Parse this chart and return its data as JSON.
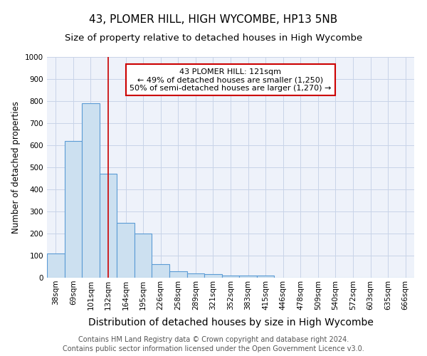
{
  "title": "43, PLOMER HILL, HIGH WYCOMBE, HP13 5NB",
  "subtitle": "Size of property relative to detached houses in High Wycombe",
  "xlabel": "Distribution of detached houses by size in High Wycombe",
  "ylabel": "Number of detached properties",
  "footer_line1": "Contains HM Land Registry data © Crown copyright and database right 2024.",
  "footer_line2": "Contains public sector information licensed under the Open Government Licence v3.0.",
  "categories": [
    "38sqm",
    "69sqm",
    "101sqm",
    "132sqm",
    "164sqm",
    "195sqm",
    "226sqm",
    "258sqm",
    "289sqm",
    "321sqm",
    "352sqm",
    "383sqm",
    "415sqm",
    "446sqm",
    "478sqm",
    "509sqm",
    "540sqm",
    "572sqm",
    "603sqm",
    "635sqm",
    "666sqm"
  ],
  "bar_values": [
    110,
    620,
    790,
    470,
    250,
    200,
    60,
    30,
    20,
    15,
    10,
    10,
    10,
    0,
    0,
    0,
    0,
    0,
    0,
    0,
    0
  ],
  "bar_color": "#cce0f0",
  "bar_edge_color": "#5b9bd5",
  "bar_edge_width": 0.8,
  "ylim": [
    0,
    1000
  ],
  "yticks": [
    0,
    100,
    200,
    300,
    400,
    500,
    600,
    700,
    800,
    900,
    1000
  ],
  "vline_x": 3.0,
  "vline_color": "#cc0000",
  "vline_linewidth": 1.2,
  "annotation_text": "43 PLOMER HILL: 121sqm\n← 49% of detached houses are smaller (1,250)\n50% of semi-detached houses are larger (1,270) →",
  "annotation_box_color": "#ffffff",
  "annotation_border_color": "#cc0000",
  "grid_color": "#c8d4e8",
  "bg_color": "#eef2fa",
  "title_fontsize": 11,
  "subtitle_fontsize": 9.5,
  "xlabel_fontsize": 10,
  "ylabel_fontsize": 8.5,
  "tick_fontsize": 7.5,
  "annotation_fontsize": 8,
  "footer_fontsize": 7
}
